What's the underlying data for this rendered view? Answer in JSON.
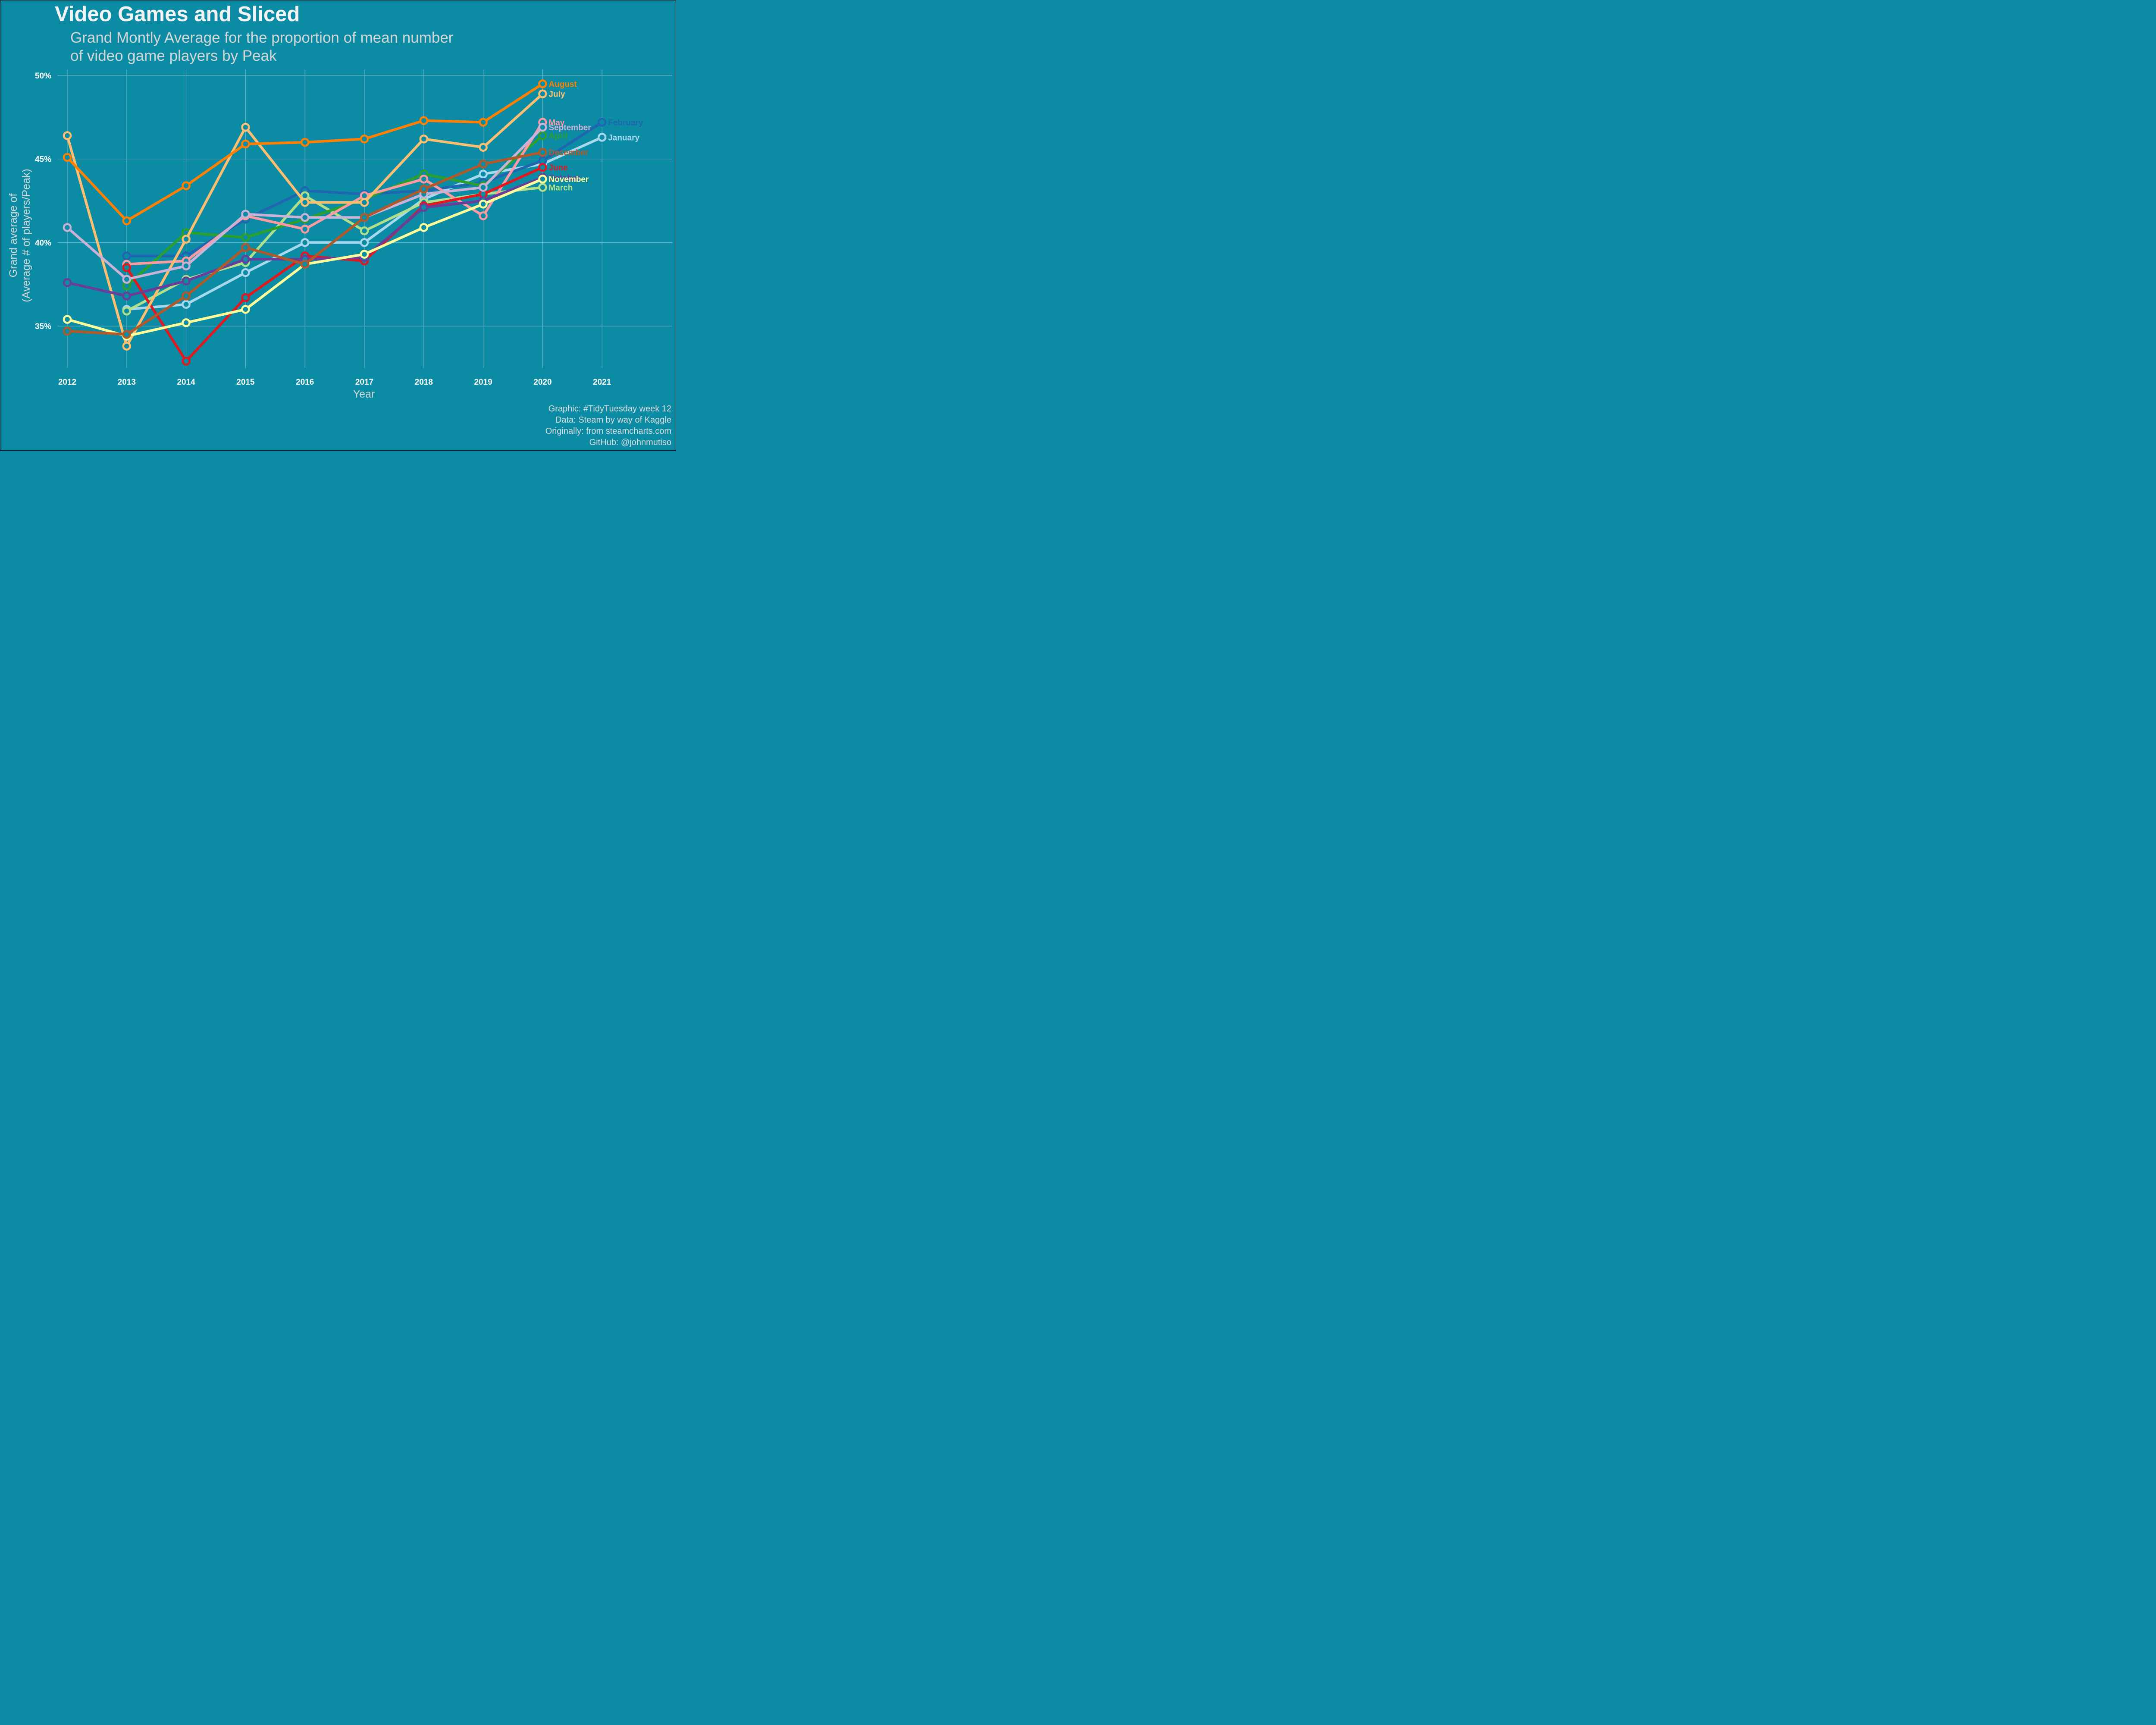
{
  "chart_data": {
    "type": "line",
    "title": "Video Games and Sliced",
    "subtitle": "Grand Montly Average for the proportion of mean number\n of video game players by Peak",
    "xlabel": "Year",
    "ylabel_lines": [
      "Grand average of",
      "(Average # of players/Peak)"
    ],
    "caption": [
      "Graphic: #TidyTuesday week 12",
      "Data: Steam by way of Kaggle",
      "Originally: from steamcharts.com",
      "GitHub: @johnmutiso"
    ],
    "x_ticks": [
      2012,
      2013,
      2014,
      2015,
      2016,
      2017,
      2018,
      2019,
      2020,
      2021
    ],
    "y_ticks": [
      0.35,
      0.4,
      0.45,
      0.5
    ],
    "y_tick_labels": [
      "35%",
      "40%",
      "45%",
      "50%"
    ],
    "xlim": [
      2012,
      2021.9
    ],
    "ylim": [
      0.32,
      0.5
    ],
    "grid": true,
    "background": "#0b8ba4",
    "grid_color": "#6fb0c4",
    "series": [
      {
        "name": "January",
        "color": "#a6d8ee",
        "x": [
          2013,
          2014,
          2015,
          2016,
          2017,
          2018,
          2019,
          2020,
          2021
        ],
        "values": [
          0.36,
          0.363,
          0.382,
          0.4,
          0.4,
          0.426,
          0.441,
          0.447,
          0.463
        ]
      },
      {
        "name": "February",
        "color": "#1f65b0",
        "x": [
          2013,
          2014,
          2015,
          2016,
          2017,
          2018,
          2019,
          2020,
          2021
        ],
        "values": [
          0.392,
          0.392,
          0.414,
          0.431,
          0.429,
          0.431,
          0.436,
          0.449,
          0.472
        ]
      },
      {
        "name": "March",
        "color": "#b2e08a",
        "x": [
          2013,
          2014,
          2015,
          2016,
          2017,
          2018,
          2019,
          2020
        ],
        "values": [
          0.359,
          0.378,
          0.388,
          0.428,
          0.407,
          0.424,
          0.429,
          0.433
        ]
      },
      {
        "name": "April",
        "color": "#2ca02c",
        "x": [
          2013,
          2014,
          2015,
          2016,
          2017,
          2018,
          2019,
          2020
        ],
        "values": [
          0.374,
          0.406,
          0.403,
          0.414,
          0.426,
          0.441,
          0.434,
          0.464
        ]
      },
      {
        "name": "May",
        "color": "#fb9aa0",
        "x": [
          2013,
          2014,
          2015,
          2016,
          2017,
          2018,
          2019,
          2020
        ],
        "values": [
          0.387,
          0.389,
          0.416,
          0.408,
          0.428,
          0.438,
          0.416,
          0.472
        ]
      },
      {
        "name": "June",
        "color": "#e3171e",
        "x": [
          2013,
          2014,
          2015,
          2016,
          2017,
          2018,
          2019,
          2020
        ],
        "values": [
          0.385,
          0.329,
          0.367,
          0.392,
          0.389,
          0.422,
          0.429,
          0.445
        ]
      },
      {
        "name": "July",
        "color": "#fdbf6f",
        "x": [
          2012,
          2013,
          2014,
          2015,
          2016,
          2017,
          2018,
          2019,
          2020
        ],
        "values": [
          0.464,
          0.338,
          0.402,
          0.469,
          0.424,
          0.424,
          0.462,
          0.457,
          0.489
        ]
      },
      {
        "name": "August",
        "color": "#ff7f00",
        "x": [
          2012,
          2013,
          2014,
          2015,
          2016,
          2017,
          2018,
          2019,
          2020
        ],
        "values": [
          0.451,
          0.413,
          0.434,
          0.459,
          0.46,
          0.462,
          0.473,
          0.472,
          0.495
        ]
      },
      {
        "name": "September",
        "color": "#cab2d6",
        "x": [
          2012,
          2013,
          2014,
          2015,
          2016,
          2017,
          2018,
          2019,
          2020
        ],
        "values": [
          0.409,
          0.378,
          0.386,
          0.417,
          0.415,
          0.415,
          0.429,
          0.433,
          0.469
        ]
      },
      {
        "name": "October",
        "color": "#6a3d9a",
        "x": [
          2012,
          2013,
          2014,
          2015,
          2016,
          2017,
          2018,
          2019,
          2020
        ],
        "values": [
          0.376,
          0.368,
          0.377,
          0.39,
          0.39,
          0.391,
          0.421,
          0.425,
          0.439
        ]
      },
      {
        "name": "November",
        "color": "#ffff99",
        "x": [
          2012,
          2013,
          2014,
          2015,
          2016,
          2017,
          2018,
          2019,
          2020
        ],
        "values": [
          0.354,
          0.344,
          0.352,
          0.36,
          0.387,
          0.393,
          0.409,
          0.423,
          0.438
        ]
      },
      {
        "name": "December",
        "color": "#b15928",
        "x": [
          2012,
          2013,
          2014,
          2015,
          2016,
          2017,
          2018,
          2019,
          2020
        ],
        "values": [
          0.347,
          0.345,
          0.368,
          0.397,
          0.387,
          0.415,
          0.432,
          0.447,
          0.454
        ]
      }
    ]
  }
}
